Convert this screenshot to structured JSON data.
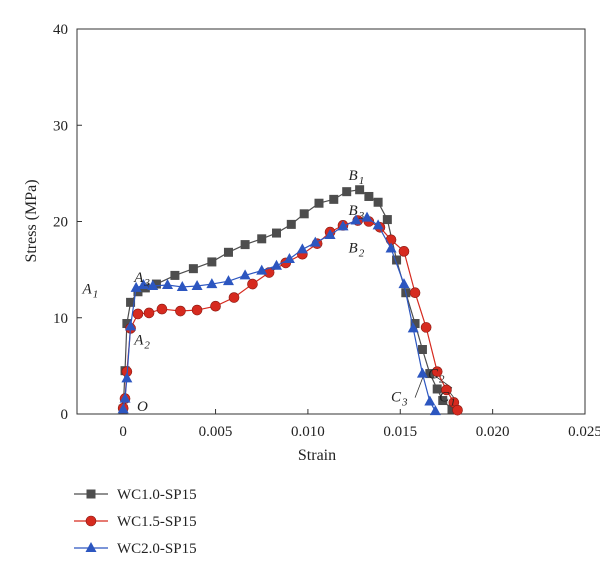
{
  "chart_data": {
    "type": "line",
    "xlabel": "Strain",
    "ylabel": "Stress (MPa)",
    "xlim": [
      -0.0025,
      0.025
    ],
    "ylim": [
      0,
      40
    ],
    "xticks": [
      0,
      0.005,
      0.01,
      0.015,
      0.02,
      0.025
    ],
    "xtick_labels": [
      "0",
      "0.005",
      "0.010",
      "0.015",
      "0.020",
      "0.025"
    ],
    "yticks": [
      0,
      10,
      20,
      30,
      40
    ],
    "ytick_labels": [
      "0",
      "10",
      "20",
      "30",
      "40"
    ],
    "grid": false,
    "legend_position": "bottom-left",
    "series": [
      {
        "name": "WC1.0-SP15",
        "color": "#4d4d4d",
        "marker": "square",
        "points": [
          [
            0,
            0.5
          ],
          [
            0.0001,
            4.5
          ],
          [
            0.0002,
            9.4
          ],
          [
            0.0004,
            11.6
          ],
          [
            0.0008,
            12.7
          ],
          [
            0.0012,
            13.1
          ],
          [
            0.0018,
            13.5
          ],
          [
            0.0028,
            14.4
          ],
          [
            0.0038,
            15.1
          ],
          [
            0.0048,
            15.8
          ],
          [
            0.0057,
            16.8
          ],
          [
            0.0066,
            17.6
          ],
          [
            0.0075,
            18.2
          ],
          [
            0.0083,
            18.8
          ],
          [
            0.0091,
            19.7
          ],
          [
            0.0098,
            20.8
          ],
          [
            0.0106,
            21.9
          ],
          [
            0.0114,
            22.3
          ],
          [
            0.0121,
            23.1
          ],
          [
            0.0128,
            23.3
          ],
          [
            0.0133,
            22.6
          ],
          [
            0.0138,
            22.0
          ],
          [
            0.0143,
            20.2
          ],
          [
            0.0148,
            16.0
          ],
          [
            0.0153,
            12.6
          ],
          [
            0.0158,
            9.4
          ],
          [
            0.0162,
            6.7
          ],
          [
            0.0166,
            4.2
          ],
          [
            0.017,
            2.6
          ],
          [
            0.0173,
            1.4
          ],
          [
            0.0178,
            0.5
          ]
        ]
      },
      {
        "name": "WC1.5-SP15",
        "color": "#d62a1f",
        "marker": "circle",
        "points": [
          [
            0,
            0.6
          ],
          [
            0.0001,
            1.6
          ],
          [
            0.0002,
            4.4
          ],
          [
            0.0004,
            8.9
          ],
          [
            0.0008,
            10.4
          ],
          [
            0.0014,
            10.5
          ],
          [
            0.0021,
            10.9
          ],
          [
            0.0031,
            10.7
          ],
          [
            0.004,
            10.8
          ],
          [
            0.005,
            11.2
          ],
          [
            0.006,
            12.1
          ],
          [
            0.007,
            13.5
          ],
          [
            0.0079,
            14.7
          ],
          [
            0.0088,
            15.7
          ],
          [
            0.0097,
            16.6
          ],
          [
            0.0105,
            17.7
          ],
          [
            0.0112,
            18.9
          ],
          [
            0.0119,
            19.6
          ],
          [
            0.0127,
            20.1
          ],
          [
            0.0133,
            20.0
          ],
          [
            0.0139,
            19.4
          ],
          [
            0.0145,
            18.1
          ],
          [
            0.0152,
            16.9
          ],
          [
            0.0158,
            12.6
          ],
          [
            0.0164,
            9.0
          ],
          [
            0.017,
            4.4
          ],
          [
            0.0175,
            2.5
          ],
          [
            0.0179,
            1.2
          ],
          [
            0.0181,
            0.4
          ]
        ]
      },
      {
        "name": "WC2.0-SP15",
        "color": "#2c56c0",
        "marker": "triangle",
        "points": [
          [
            0,
            0.5
          ],
          [
            0.0001,
            1.6
          ],
          [
            0.0002,
            3.7
          ],
          [
            0.0004,
            9.1
          ],
          [
            0.0007,
            13.1
          ],
          [
            0.0011,
            13.4
          ],
          [
            0.0016,
            13.3
          ],
          [
            0.0024,
            13.4
          ],
          [
            0.0032,
            13.2
          ],
          [
            0.004,
            13.3
          ],
          [
            0.0048,
            13.5
          ],
          [
            0.0057,
            13.8
          ],
          [
            0.0066,
            14.4
          ],
          [
            0.0075,
            14.9
          ],
          [
            0.0083,
            15.4
          ],
          [
            0.009,
            16.1
          ],
          [
            0.0097,
            17.1
          ],
          [
            0.0104,
            17.8
          ],
          [
            0.0112,
            18.6
          ],
          [
            0.0119,
            19.5
          ],
          [
            0.0126,
            20.1
          ],
          [
            0.0132,
            20.4
          ],
          [
            0.0138,
            19.6
          ],
          [
            0.0145,
            17.2
          ],
          [
            0.0152,
            13.5
          ],
          [
            0.0157,
            8.9
          ],
          [
            0.0162,
            4.2
          ],
          [
            0.0166,
            1.3
          ],
          [
            0.0169,
            0.3
          ]
        ]
      }
    ],
    "annotations": [
      {
        "main": "O",
        "sub": "",
        "x": 0.00075,
        "y": 0.3
      },
      {
        "main": "A",
        "sub": "1",
        "x": -0.0022,
        "y": 12.5
      },
      {
        "main": "A",
        "sub": "3",
        "x": 0.0006,
        "y": 13.7
      },
      {
        "main": "A",
        "sub": "2",
        "x": 0.0006,
        "y": 7.2
      },
      {
        "main": "B",
        "sub": "1",
        "x": 0.0122,
        "y": 24.3
      },
      {
        "main": "B",
        "sub": "3",
        "x": 0.0122,
        "y": 20.7
      },
      {
        "main": "B",
        "sub": "2",
        "x": 0.0122,
        "y": 16.8
      },
      {
        "main": "C",
        "sub": "2",
        "x": 0.0165,
        "y": 3.7
      },
      {
        "main": "C",
        "sub": "1",
        "x": 0.0171,
        "y": 1.3
      },
      {
        "main": "C",
        "sub": "3",
        "x": 0.0145,
        "y": 1.3
      }
    ],
    "leader_lines": [
      {
        "from": [
          0.0178,
          2.7
        ],
        "to": [
          0.0167,
          4.2
        ]
      },
      {
        "from": [
          0.0178,
          2.7
        ],
        "to": [
          0.017,
          2.7
        ]
      },
      {
        "from": [
          0.0175,
          2.7
        ],
        "to": [
          0.0179,
          1.7
        ]
      },
      {
        "from": [
          0.0158,
          1.7
        ],
        "to": [
          0.0163,
          4.2
        ]
      }
    ]
  }
}
